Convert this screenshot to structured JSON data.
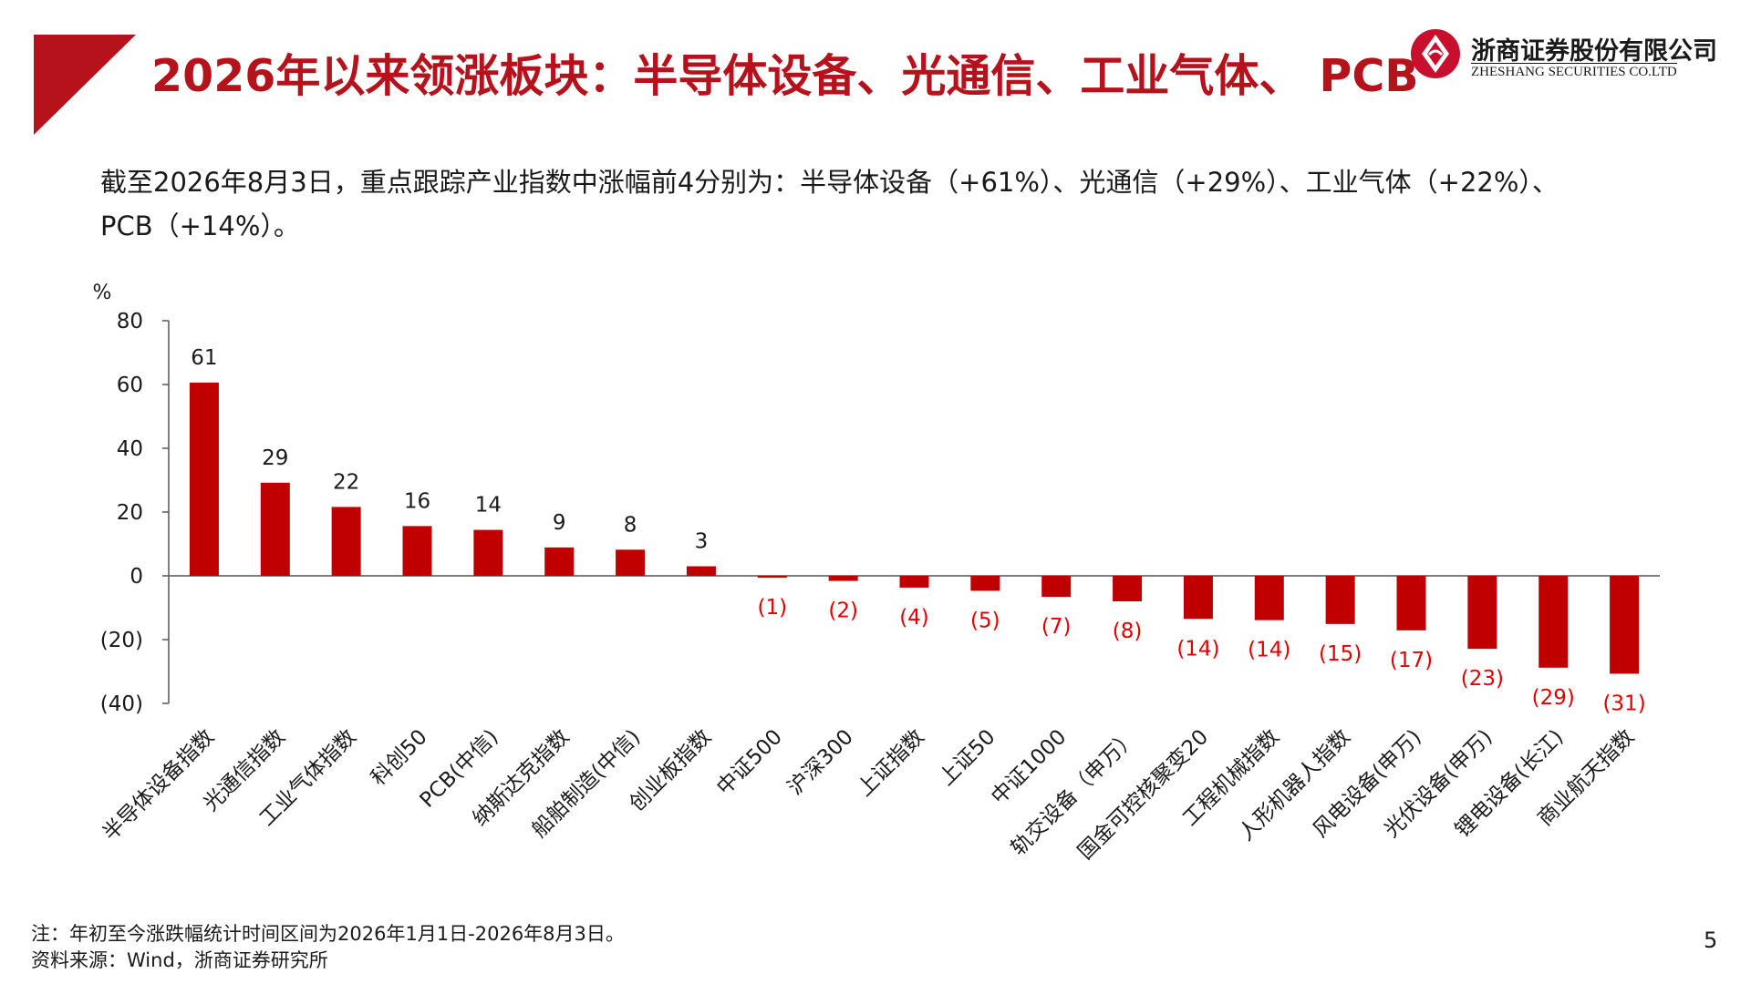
{
  "header": {
    "title": "2026年以来领涨板块：半导体设备、光通信、工业气体、 PCB",
    "accent_color": "#b5121b"
  },
  "logo": {
    "name_cn": "浙商证券股份有限公司",
    "name_en": "ZHESHANG SECURITIES CO.LTD",
    "icon": "zheshang-logo-icon"
  },
  "summary": {
    "line1": "截至2026年8月3日，重点跟踪产业指数中涨幅前4分别为：半导体设备（+61%）、光通信（+29%）、工业气体（+22%）、",
    "line2": "PCB（+14%）。"
  },
  "chart_data": {
    "type": "bar",
    "title": "",
    "ylabel": "%",
    "xlabel": "",
    "ylim": [
      -40,
      80
    ],
    "yticks": [
      80,
      60,
      40,
      20,
      0,
      -20,
      -40
    ],
    "ytick_labels": [
      "80",
      "60",
      "40",
      "20",
      "0",
      "(20)",
      "(40)"
    ],
    "grid": false,
    "legend": "none",
    "bar_color": "#c00000",
    "positive_label_color": "#1a1a1a",
    "negative_label_color": "#e00000",
    "categories": [
      "半导体设备指数",
      "光通信指数",
      "工业气体指数",
      "科创50",
      "PCB(中信)",
      "纳斯达克指数",
      "船舶制造(中信)",
      "创业板指数",
      "中证500",
      "沪深300",
      "上证指数",
      "上证50",
      "中证1000",
      "轨交设备（申万）",
      "国金可控核聚变20",
      "工程机械指数",
      "人形机器人指数",
      "风电设备(申万)",
      "光伏设备(申万)",
      "锂电设备(长江)",
      "商业航天指数"
    ],
    "values": [
      60.6,
      29.2,
      21.6,
      15.6,
      14.4,
      8.9,
      8.2,
      3.0,
      -0.6,
      -1.6,
      -3.7,
      -4.7,
      -6.6,
      -8.0,
      -13.5,
      -13.9,
      -15.1,
      -17.1,
      -22.9,
      -28.8,
      -30.7
    ],
    "labels": [
      "61",
      "29",
      "22",
      "16",
      "14",
      "9",
      "8",
      "3",
      "(1)",
      "(2)",
      "(4)",
      "(5)",
      "(7)",
      "(8)",
      "(14)",
      "(14)",
      "(15)",
      "(17)",
      "(23)",
      "(29)",
      "(31)"
    ]
  },
  "footer": {
    "note": "注：年初至今涨跌幅统计时间区间为2026年1月1日-2026年8月3日。",
    "source": "资料来源：Wind，浙商证券研究所",
    "page_number": "5"
  }
}
